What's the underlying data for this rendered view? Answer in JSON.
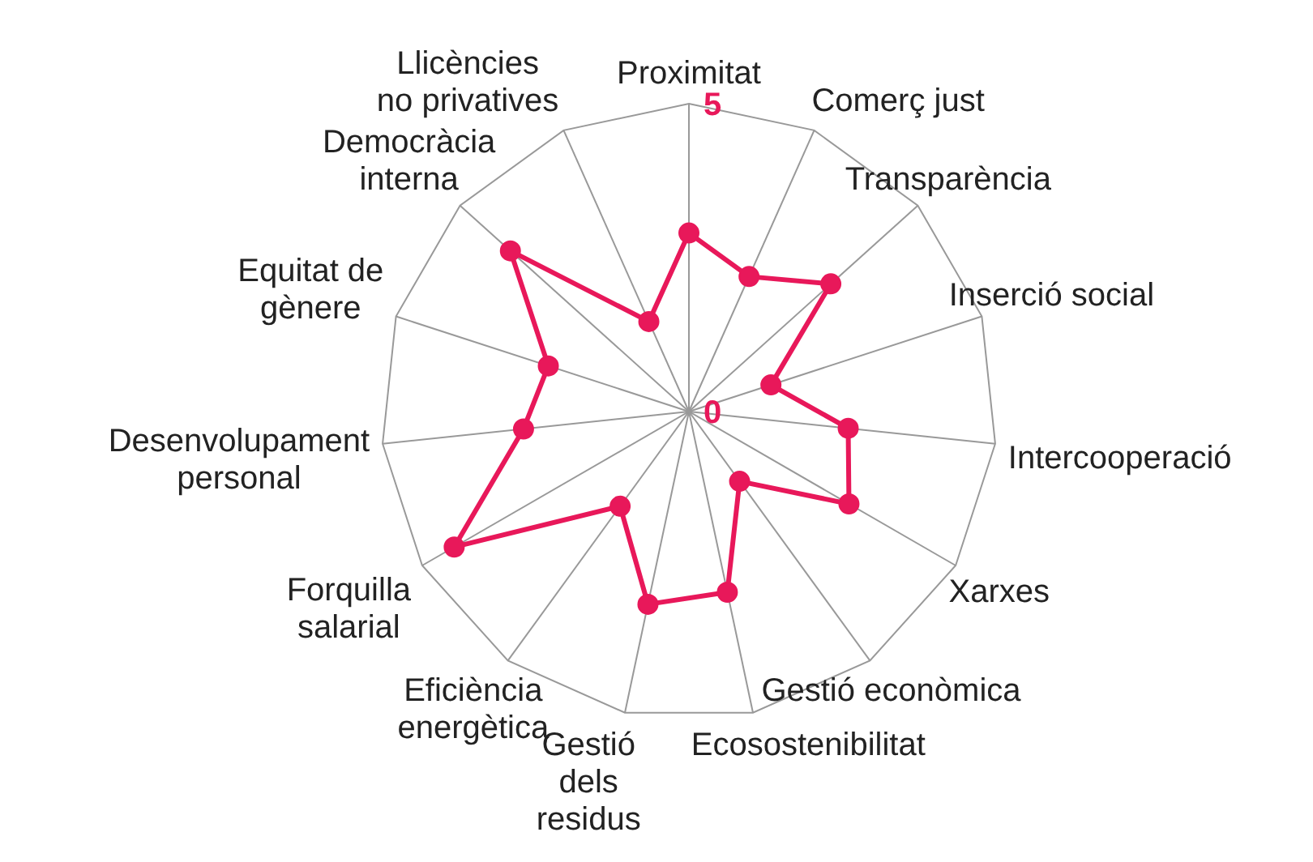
{
  "chart_data": {
    "type": "radar",
    "categories": [
      "Proximitat",
      "Comerç just",
      "Transparència",
      "Inserció social",
      "Intercooperació",
      "Xarxes",
      "Gestió econòmica",
      "Ecosostenibilitat",
      "Gestió\ndels\nresidus",
      "Eficiència\nenergètica",
      "Forquilla\nsalarial",
      "Desenvolupament\npersonal",
      "Equitat de\ngènere",
      "Democràcia\ninterna",
      "Llicències\nno privatives"
    ],
    "series": [
      {
        "color": "#e8185a",
        "values": [
          2.9,
          2.4,
          3.1,
          1.4,
          2.6,
          3.0,
          1.4,
          3.0,
          3.2,
          1.9,
          4.4,
          2.7,
          2.4,
          3.9,
          1.6
        ]
      }
    ],
    "ylim": [
      0,
      5
    ],
    "yticks": [
      0,
      5
    ],
    "grid": true,
    "marker": "circle",
    "line_style": "solid"
  }
}
